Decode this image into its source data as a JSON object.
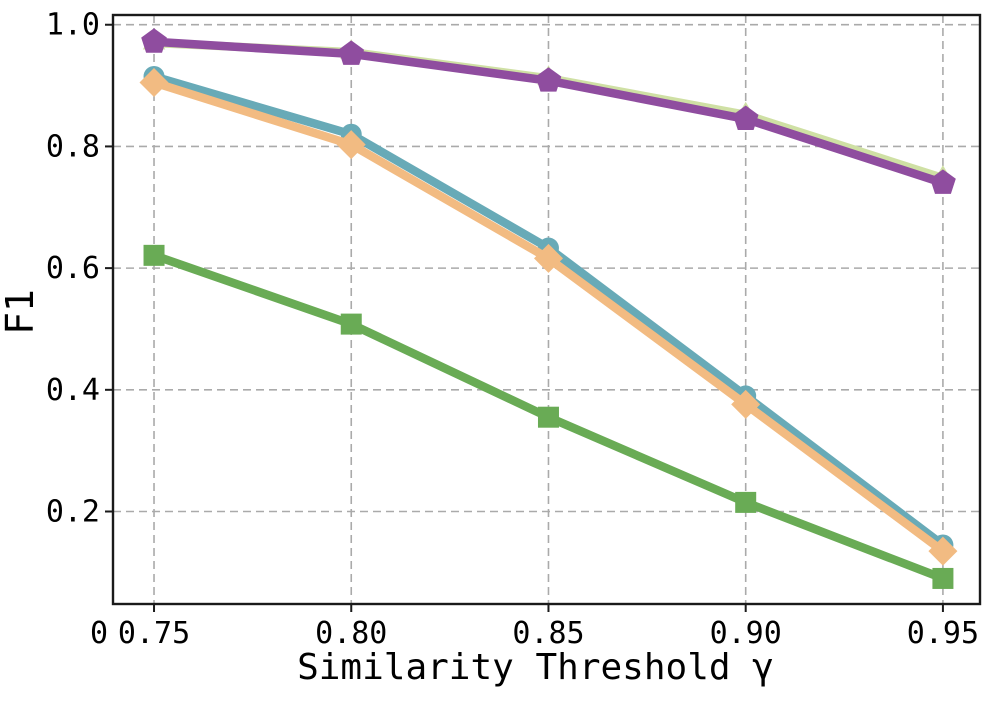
{
  "figure": {
    "background": "#ffffff",
    "axis_color": "#1a1a1a",
    "grid_color": "#aaaaaa"
  },
  "chart_data": {
    "type": "line",
    "title": "",
    "xlabel": "Similarity Threshold γ",
    "ylabel": "F1",
    "legend": "none",
    "grid": "dashed-both-axes",
    "x": [
      0.75,
      0.8,
      0.85,
      0.9,
      0.95
    ],
    "x_tick_labels": [
      "0.75",
      "0.80",
      "0.85",
      "0.90",
      "0.95"
    ],
    "y_tick_values": [
      1.0,
      0.8,
      0.6,
      0.4,
      0.2
    ],
    "y_tick_labels": [
      "1.0",
      "0.8",
      "0.6",
      "0.4",
      "0.2"
    ],
    "origin_label": "0",
    "xlim": [
      0.7396,
      0.9594
    ],
    "ylim": [
      0.048,
      1.016
    ],
    "series": [
      {
        "name": "pale-green-triangle",
        "marker": "triangle-up",
        "color": "#cfe0a4",
        "values": [
          0.97,
          0.955,
          0.912,
          0.852,
          0.748
        ]
      },
      {
        "name": "purple-pentagon",
        "marker": "pentagon",
        "color": "#8f4d9f",
        "values": [
          0.972,
          0.952,
          0.908,
          0.845,
          0.74
        ]
      },
      {
        "name": "teal-circle",
        "marker": "circle",
        "color": "#68aab7",
        "values": [
          0.915,
          0.82,
          0.633,
          0.39,
          0.145
        ]
      },
      {
        "name": "orange-diamond",
        "marker": "diamond",
        "color": "#f2bb82",
        "values": [
          0.905,
          0.803,
          0.616,
          0.376,
          0.135
        ]
      },
      {
        "name": "green-square",
        "marker": "square",
        "color": "#69ab55",
        "values": [
          0.621,
          0.508,
          0.355,
          0.215,
          0.09
        ]
      }
    ]
  }
}
